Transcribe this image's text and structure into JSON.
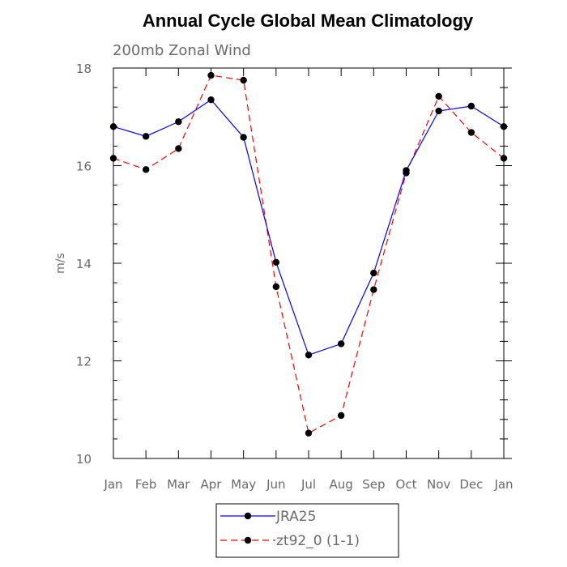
{
  "chart_data": {
    "type": "line",
    "title": "Annual Cycle Global Mean Climatology",
    "subtitle": "200mb Zonal Wind",
    "xlabel": "",
    "ylabel": "m/s",
    "categories": [
      "Jan",
      "Feb",
      "Mar",
      "Apr",
      "May",
      "Jun",
      "Jul",
      "Aug",
      "Sep",
      "Oct",
      "Nov",
      "Dec",
      "Jan"
    ],
    "ylim": [
      10,
      18
    ],
    "yticks": [
      10,
      12,
      14,
      16,
      18
    ],
    "grid": false,
    "legend_position": "bottom",
    "series": [
      {
        "name": "JRA25",
        "color": "#0000ff",
        "line_style": "solid",
        "marker": "filled-circle",
        "values": [
          16.8,
          16.6,
          16.9,
          17.35,
          16.58,
          14.02,
          12.12,
          12.35,
          13.8,
          15.9,
          17.12,
          17.22,
          16.8
        ]
      },
      {
        "name": "zt92_0 (1-1)",
        "color": "#ff0000",
        "line_style": "dashed",
        "marker": "filled-circle",
        "values": [
          16.15,
          15.92,
          16.35,
          17.85,
          17.75,
          13.52,
          10.52,
          10.88,
          13.46,
          15.85,
          17.42,
          16.68,
          16.15
        ]
      }
    ]
  }
}
